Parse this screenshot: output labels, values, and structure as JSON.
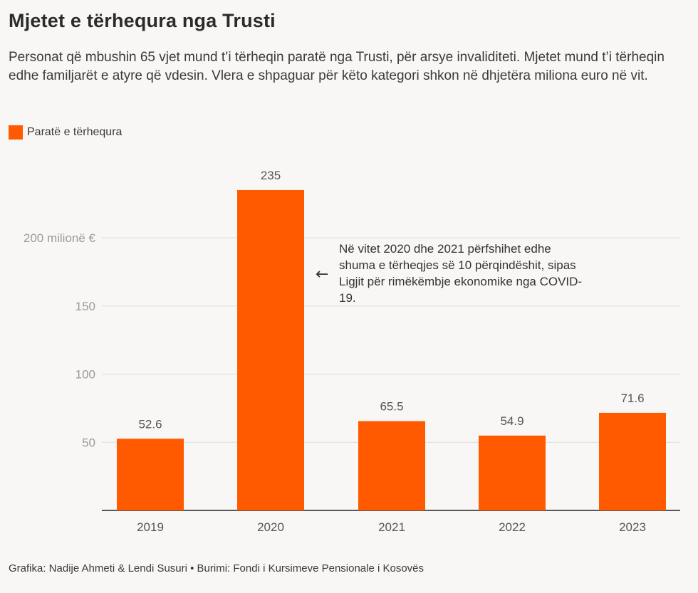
{
  "header": {
    "title": "Mjetet e tërhequra nga Trusti",
    "subtitle": "Personat që mbushin 65 vjet mund t’i tërheqin paratë nga Trusti, për arsye invaliditeti. Mjetet mund t’i tërheqin edhe familjarët e atyre që vdesin. Vlera e shpaguar për këto kategori shkon në dhjetëra miliona euro në vit."
  },
  "footer": {
    "credit": "Grafika: Nadije Ahmeti & Lendi Susuri • Burimi: Fondi i Kursimeve Pensionale i Kosovës"
  },
  "colors": {
    "bar": "#ff5a00",
    "grid": "#dcdcdc",
    "axis": "#222222",
    "tick_text": "#9a9a9a",
    "label_text": "#555555"
  },
  "chart_data": {
    "type": "bar",
    "title": "Mjetet e tërhequra nga Trusti",
    "xlabel": "",
    "ylabel": "",
    "ylim": [
      0,
      235
    ],
    "grid": true,
    "legend": [
      {
        "name": "Paratë e tërhequra",
        "position": "top-left"
      }
    ],
    "categories": [
      "2019",
      "2020",
      "2021",
      "2022",
      "2023"
    ],
    "series": [
      {
        "name": "Paratë e tërhequra",
        "values": [
          52.6,
          235,
          65.5,
          54.9,
          71.6
        ]
      }
    ],
    "data_labels": [
      "52.6",
      "235",
      "65.5",
      "54.9",
      "71.6"
    ],
    "yticks": [
      {
        "value": 50,
        "label": "50"
      },
      {
        "value": 100,
        "label": "100"
      },
      {
        "value": 150,
        "label": "150"
      },
      {
        "value": 200,
        "label": "200 milionë €"
      }
    ],
    "annotation": {
      "arrow": "←",
      "lines": [
        "Në vitet 2020 dhe 2021 përfshihet edhe",
        "shuma e tërheqjes së 10 përqindëshit, sipas",
        "Ligjit për rimëkëmbje ekonomike nga COVID-",
        "19."
      ]
    }
  }
}
